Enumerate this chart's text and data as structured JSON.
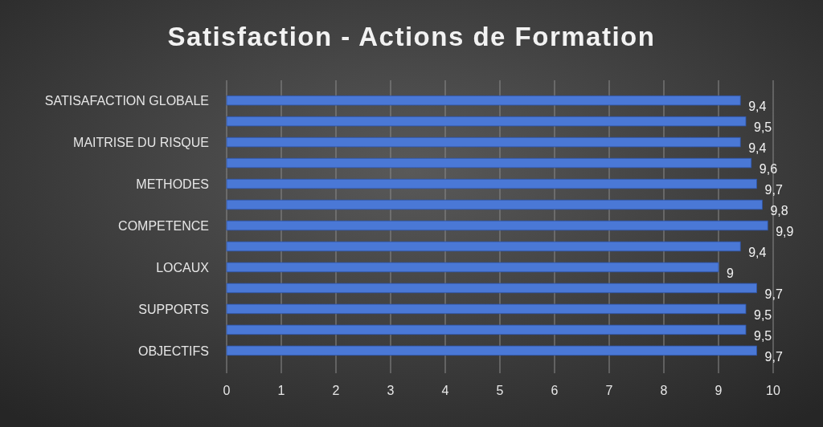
{
  "chart_data": {
    "type": "bar",
    "orientation": "horizontal",
    "title": "Satisfaction - Actions de Formation",
    "categories": [
      "SATISAFACTION GLOBALE",
      null,
      "MAITRISE DU RISQUE",
      null,
      "METHODES",
      null,
      "COMPETENCE",
      null,
      "LOCAUX",
      null,
      "SUPPORTS",
      null,
      "OBJECTIFS"
    ],
    "values": [
      9.4,
      9.5,
      9.4,
      9.6,
      9.7,
      9.8,
      9.9,
      9.4,
      9,
      9.7,
      9.5,
      9.5,
      9.7
    ],
    "value_labels": [
      "9,4",
      "9,5",
      "9,4",
      "9,6",
      "9,7",
      "9,8",
      "9,9",
      "9,4",
      "9",
      "9,7",
      "9,5",
      "9,5",
      "9,7"
    ],
    "color": "#4a78d6",
    "xlim": [
      0,
      10
    ],
    "xticks": [
      0,
      1,
      2,
      3,
      4,
      5,
      6,
      7,
      8,
      9,
      10
    ],
    "grid": "x"
  }
}
